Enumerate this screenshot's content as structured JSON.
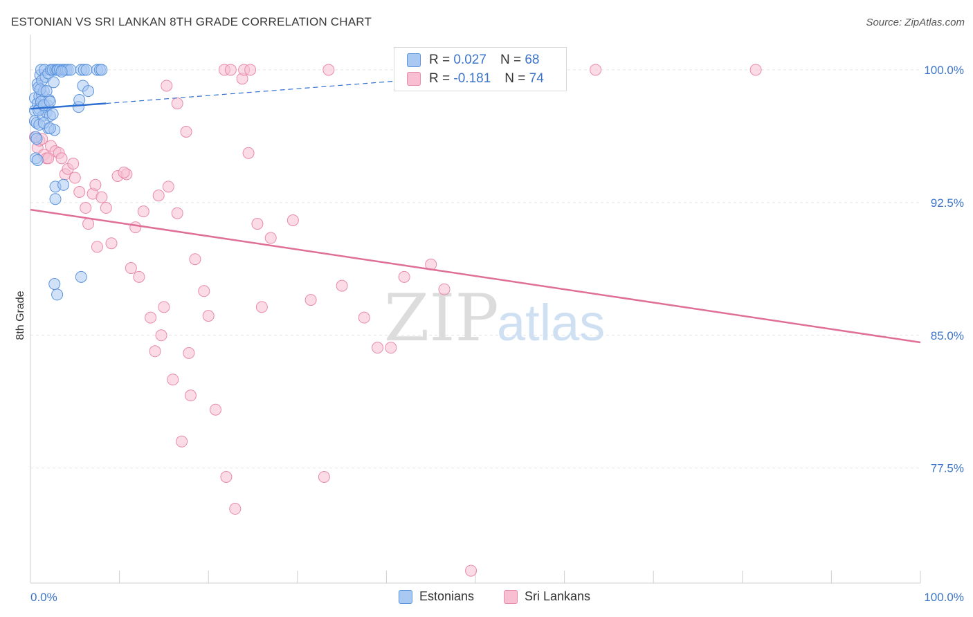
{
  "title": "ESTONIAN VS SRI LANKAN 8TH GRADE CORRELATION CHART",
  "source": "Source: ZipAtlas.com",
  "colors": {
    "blue_fill": "#a9c9f2",
    "blue_stroke": "#5b93dc",
    "blue_line": "#2f6fd0",
    "pink_fill": "#f7bfd1",
    "pink_stroke": "#e88aaa",
    "pink_line": "#e06f98",
    "grid": "#e3e3e3",
    "axis_label": "#3b74c8"
  },
  "legend": {
    "rows": [
      {
        "r_label": "R = ",
        "r_value": "0.027",
        "n_label": "N = ",
        "n_value": "68"
      },
      {
        "r_label": "R = ",
        "r_value": "-0.181",
        "n_label": "N = ",
        "n_value": "74"
      }
    ]
  },
  "bottom_legend": [
    "Estonians",
    "Sri Lankans"
  ],
  "watermark": {
    "zip": "ZIP",
    "atlas": "atlas"
  },
  "chart_data": {
    "type": "scatter",
    "title": "ESTONIAN VS SRI LANKAN 8TH GRADE CORRELATION CHART",
    "xlabel": "",
    "ylabel": "8th Grade",
    "xlim": [
      0,
      100
    ],
    "ylim": [
      71.0,
      101.6
    ],
    "x_tick_labels": [
      "0.0%",
      "100.0%"
    ],
    "y_ticks": [
      100.0,
      92.5,
      85.0,
      77.5
    ],
    "y_tick_labels": [
      "100.0%",
      "92.5%",
      "85.0%",
      "77.5%"
    ],
    "series": [
      {
        "name": "Estonians",
        "R": 0.027,
        "N": 68,
        "trend": {
          "x": [
            0,
            8.5
          ],
          "y": [
            97.8,
            98.1
          ],
          "dashed_to": [
            42.0,
            99.4
          ]
        },
        "points": [
          [
            0.5,
            97.1
          ],
          [
            0.5,
            97.7
          ],
          [
            0.5,
            98.4
          ],
          [
            0.6,
            96.2
          ],
          [
            0.6,
            95.0
          ],
          [
            0.7,
            97.0
          ],
          [
            0.8,
            98.1
          ],
          [
            0.8,
            99.2
          ],
          [
            0.8,
            94.9
          ],
          [
            0.9,
            99.0
          ],
          [
            1.0,
            97.8
          ],
          [
            1.0,
            98.5
          ],
          [
            1.1,
            99.7
          ],
          [
            1.2,
            100.0
          ],
          [
            1.3,
            99.4
          ],
          [
            1.3,
            98.6
          ],
          [
            1.4,
            97.4
          ],
          [
            1.5,
            98.8
          ],
          [
            1.6,
            100.0
          ],
          [
            1.6,
            97.9
          ],
          [
            1.7,
            99.6
          ],
          [
            1.8,
            97.6
          ],
          [
            1.9,
            98.0
          ],
          [
            2.0,
            99.8
          ],
          [
            2.0,
            96.7
          ],
          [
            2.1,
            98.3
          ],
          [
            2.2,
            97.4
          ],
          [
            2.3,
            100.0
          ],
          [
            2.5,
            100.0
          ],
          [
            2.6,
            99.3
          ],
          [
            2.8,
            100.0
          ],
          [
            2.5,
            97.5
          ],
          [
            2.7,
            96.6
          ],
          [
            3.0,
            100.0
          ],
          [
            3.1,
            100.0
          ],
          [
            3.3,
            100.0
          ],
          [
            3.6,
            100.0
          ],
          [
            3.8,
            100.0
          ],
          [
            4.0,
            100.0
          ],
          [
            4.2,
            100.0
          ],
          [
            4.5,
            100.0
          ],
          [
            1.1,
            98.9
          ],
          [
            0.9,
            97.7
          ],
          [
            1.2,
            98.2
          ],
          [
            1.5,
            98.0
          ],
          [
            2.2,
            98.2
          ],
          [
            1.0,
            96.9
          ],
          [
            1.8,
            98.8
          ],
          [
            5.4,
            97.9
          ],
          [
            5.5,
            98.3
          ],
          [
            5.7,
            100.0
          ],
          [
            5.9,
            99.1
          ],
          [
            6.0,
            100.0
          ],
          [
            6.3,
            100.0
          ],
          [
            6.5,
            98.8
          ],
          [
            7.5,
            100.0
          ],
          [
            7.8,
            100.0
          ],
          [
            8.0,
            100.0
          ],
          [
            2.8,
            93.4
          ],
          [
            3.7,
            93.5
          ],
          [
            2.8,
            92.7
          ],
          [
            2.7,
            87.9
          ],
          [
            3.0,
            87.3
          ],
          [
            5.7,
            88.3
          ],
          [
            0.7,
            96.1
          ],
          [
            1.5,
            97.0
          ],
          [
            2.2,
            96.7
          ],
          [
            3.5,
            99.9
          ]
        ]
      },
      {
        "name": "Sri Lankans",
        "R": -0.181,
        "N": 74,
        "trend": {
          "x": [
            0,
            100
          ],
          "y": [
            92.1,
            84.6
          ]
        },
        "points": [
          [
            0.5,
            96.2
          ],
          [
            0.8,
            95.6
          ],
          [
            1.0,
            96.0
          ],
          [
            1.3,
            96.1
          ],
          [
            1.5,
            95.2
          ],
          [
            1.8,
            95.0
          ],
          [
            2.3,
            95.7
          ],
          [
            2.8,
            95.4
          ],
          [
            3.2,
            95.3
          ],
          [
            3.5,
            95.0
          ],
          [
            3.9,
            94.1
          ],
          [
            4.2,
            94.4
          ],
          [
            4.8,
            94.7
          ],
          [
            5.0,
            93.9
          ],
          [
            5.5,
            93.1
          ],
          [
            6.2,
            92.2
          ],
          [
            6.5,
            91.3
          ],
          [
            7.0,
            93.0
          ],
          [
            7.3,
            93.5
          ],
          [
            8.0,
            92.8
          ],
          [
            8.5,
            92.2
          ],
          [
            9.1,
            90.2
          ],
          [
            9.8,
            94.0
          ],
          [
            10.8,
            94.1
          ],
          [
            11.3,
            88.8
          ],
          [
            11.8,
            91.1
          ],
          [
            12.2,
            88.3
          ],
          [
            12.7,
            92.0
          ],
          [
            13.5,
            86.0
          ],
          [
            14.0,
            84.1
          ],
          [
            14.4,
            92.9
          ],
          [
            14.7,
            85.0
          ],
          [
            15.0,
            86.6
          ],
          [
            15.3,
            99.1
          ],
          [
            15.5,
            93.4
          ],
          [
            16.0,
            82.5
          ],
          [
            16.5,
            91.9
          ],
          [
            17.0,
            79.0
          ],
          [
            17.5,
            96.5
          ],
          [
            17.8,
            84.0
          ],
          [
            18.0,
            81.6
          ],
          [
            18.5,
            89.3
          ],
          [
            19.5,
            87.5
          ],
          [
            20.0,
            86.1
          ],
          [
            20.8,
            80.8
          ],
          [
            21.8,
            100.0
          ],
          [
            22.0,
            77.0
          ],
          [
            22.5,
            100.0
          ],
          [
            23.0,
            75.2
          ],
          [
            24.5,
            95.3
          ],
          [
            25.5,
            91.3
          ],
          [
            26.0,
            86.6
          ],
          [
            27.0,
            90.5
          ],
          [
            29.5,
            91.5
          ],
          [
            31.5,
            87.0
          ],
          [
            33.0,
            77.0
          ],
          [
            35.0,
            87.8
          ],
          [
            37.5,
            86.0
          ],
          [
            39.0,
            84.3
          ],
          [
            40.5,
            84.3
          ],
          [
            42.0,
            88.3
          ],
          [
            45.0,
            89.0
          ],
          [
            46.5,
            87.6
          ],
          [
            49.5,
            71.7
          ],
          [
            63.5,
            100.0
          ],
          [
            81.5,
            100.0
          ],
          [
            33.5,
            100.0
          ],
          [
            23.8,
            99.5
          ],
          [
            24.0,
            100.0
          ],
          [
            24.7,
            100.0
          ],
          [
            16.5,
            98.1
          ],
          [
            7.5,
            90.0
          ],
          [
            2.0,
            95.0
          ],
          [
            10.5,
            94.2
          ]
        ]
      }
    ]
  }
}
